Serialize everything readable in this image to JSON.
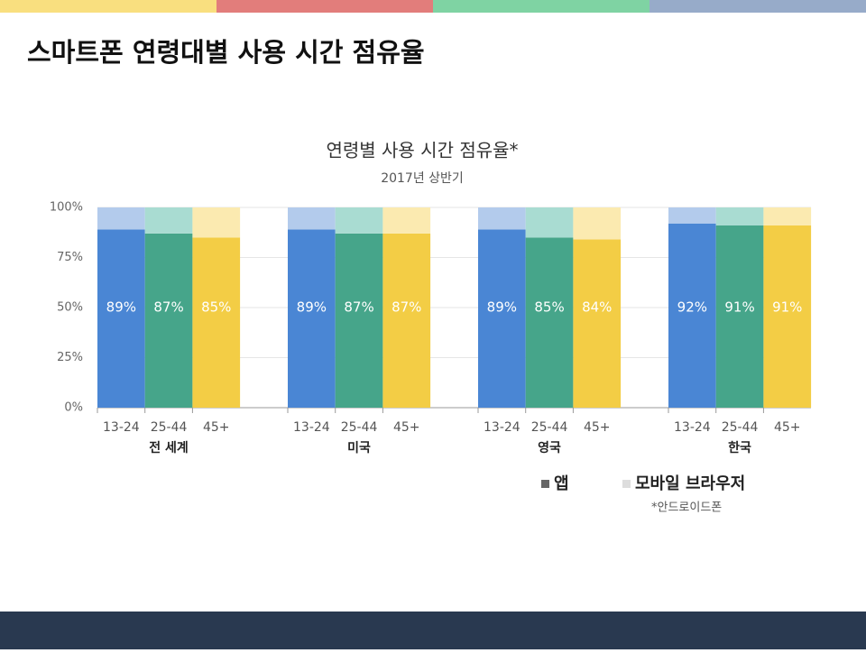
{
  "slide_title": "스마트폰 연령대별 사용 시간 점유율",
  "chart_data": {
    "type": "bar",
    "stacked": true,
    "title": "연령별 사용 시간 점유율*",
    "subtitle": "2017년 상반기",
    "groups": [
      "전 세계",
      "미국",
      "영국",
      "한국"
    ],
    "categories": [
      "13-24",
      "25-44",
      "45+",
      "13-24",
      "25-44",
      "45+",
      "13-24",
      "25-44",
      "45+",
      "13-24",
      "25-44",
      "45+"
    ],
    "category_colors": [
      "#4a86d4",
      "#46a58a",
      "#f3cd45"
    ],
    "browser_category_colors": [
      "#b3cbec",
      "#a9dcd2",
      "#fbeab0"
    ],
    "series": [
      {
        "name": "앱",
        "color": "#666666",
        "values": [
          89,
          87,
          85,
          89,
          87,
          87,
          89,
          85,
          84,
          92,
          91,
          91
        ],
        "value_labels": [
          "89%",
          "87%",
          "85%",
          "89%",
          "87%",
          "87%",
          "89%",
          "85%",
          "84%",
          "92%",
          "91%",
          "91%"
        ]
      },
      {
        "name": "모바일 브라우저",
        "color": "#dddddd",
        "values": [
          11,
          13,
          15,
          11,
          13,
          13,
          11,
          15,
          16,
          8,
          9,
          9
        ]
      }
    ],
    "ylim": [
      0,
      100
    ],
    "yticks": [
      {
        "value": 0,
        "label": "0%"
      },
      {
        "value": 25,
        "label": "25%"
      },
      {
        "value": 50,
        "label": "50%"
      },
      {
        "value": 75,
        "label": "75%"
      },
      {
        "value": 100,
        "label": "100%"
      }
    ],
    "grid": true,
    "footnote": "*안드로이드폰"
  }
}
